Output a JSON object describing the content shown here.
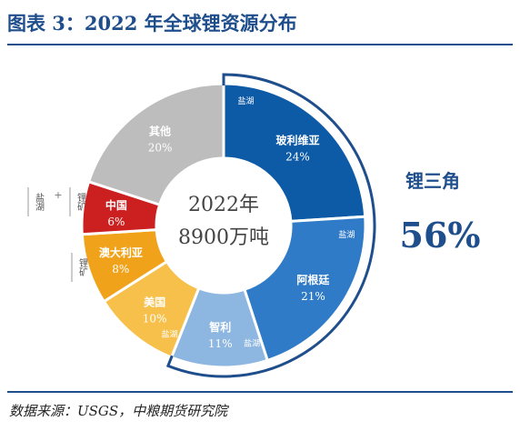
{
  "header": {
    "title": "图表 3：2022 年全球锂资源分布"
  },
  "footer": {
    "source": "数据来源：USGS，中粮期货研究院"
  },
  "center": {
    "line1": "2022年",
    "line2": "8900万吨"
  },
  "callout": {
    "label": "锂三角",
    "value": "56%"
  },
  "side_labels": {
    "brine": "盐湖",
    "plus": "+",
    "ore": "锂矿"
  },
  "chart_data": {
    "type": "pie",
    "donut": true,
    "title": "",
    "total": "8900万吨",
    "year": "2022年",
    "slices": [
      {
        "name": "玻利维亚",
        "value": 24,
        "label": "24%",
        "color": "#0d5aa7",
        "tag": "盐湖"
      },
      {
        "name": "阿根廷",
        "value": 21,
        "label": "21%",
        "color": "#2f7bc8",
        "tag": "盐湖"
      },
      {
        "name": "智利",
        "value": 11,
        "label": "11%",
        "color": "#8db6e0",
        "tag": "盐湖"
      },
      {
        "name": "美国",
        "value": 10,
        "label": "10%",
        "color": "#f7c04a",
        "tag": "盐湖"
      },
      {
        "name": "澳大利亚",
        "value": 8,
        "label": "8%",
        "color": "#f0a31a",
        "tag": "锂矿"
      },
      {
        "name": "中国",
        "value": 6,
        "label": "6%",
        "color": "#cc1f1f",
        "tag": "盐湖 + 锂矿"
      },
      {
        "name": "其他",
        "value": 20,
        "label": "20%",
        "color": "#bdbdbd",
        "tag": ""
      }
    ],
    "highlight": {
      "name": "锂三角",
      "members": [
        "玻利维亚",
        "阿根廷",
        "智利"
      ],
      "share": "56%"
    }
  },
  "colors": {
    "accent": "#1f4e8c",
    "callout": "#1f4e8c"
  }
}
